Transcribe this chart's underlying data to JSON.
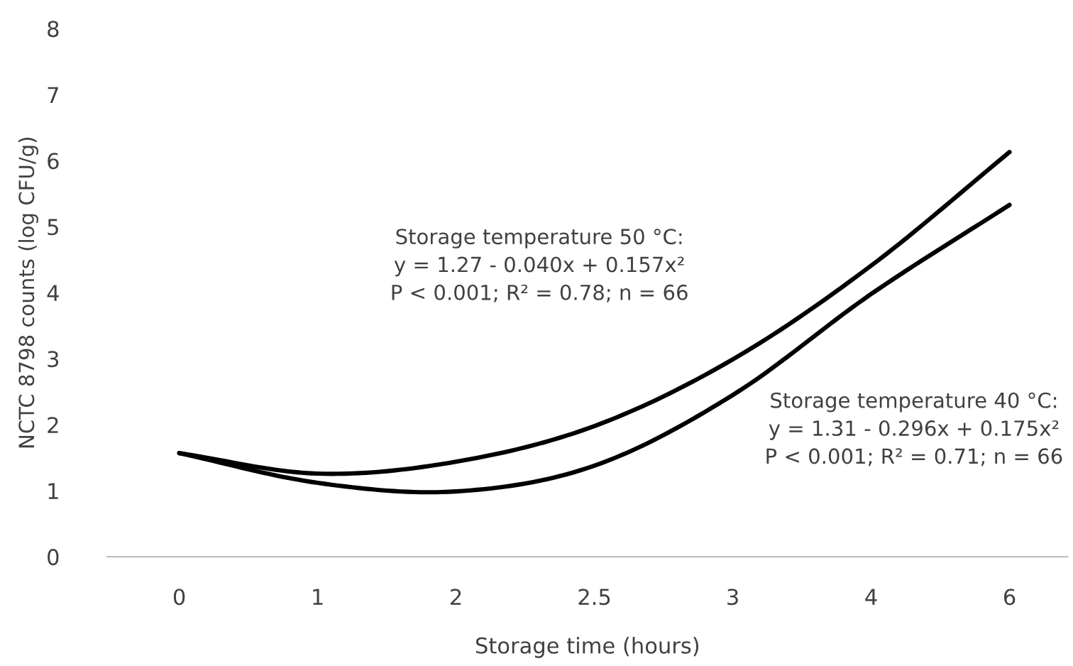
{
  "chart_data": {
    "type": "line",
    "xlabel": "Storage time (hours)",
    "ylabel": "NCTC 8798 counts (log CFU/g)",
    "categories": [
      "0",
      "1",
      "2",
      "2.5",
      "3",
      "4",
      "6"
    ],
    "series": [
      {
        "color": "#000000",
        "values": [
          1.57,
          1.26,
          1.44,
          1.98,
          2.99,
          4.41,
          6.13
        ]
      },
      {
        "color": "#000000",
        "values": [
          1.57,
          1.12,
          0.99,
          1.38,
          2.45,
          3.98,
          5.33
        ]
      }
    ],
    "ylim": [
      0,
      8
    ],
    "yticks": [
      0,
      1,
      2,
      3,
      4,
      5,
      6,
      7,
      8
    ],
    "grid": false,
    "legend": false,
    "marker": "none",
    "line_style": "solid",
    "annotations": [
      "Storage temperature 50 °C:\ny = 1.27 - 0.040x + 0.157x²\nP < 0.001; R² = 0.78; n = 66",
      "Storage temperature 40 °C:\ny = 1.31 - 0.296x + 0.175x²\nP < 0.001; R² = 0.71; n = 66"
    ]
  }
}
